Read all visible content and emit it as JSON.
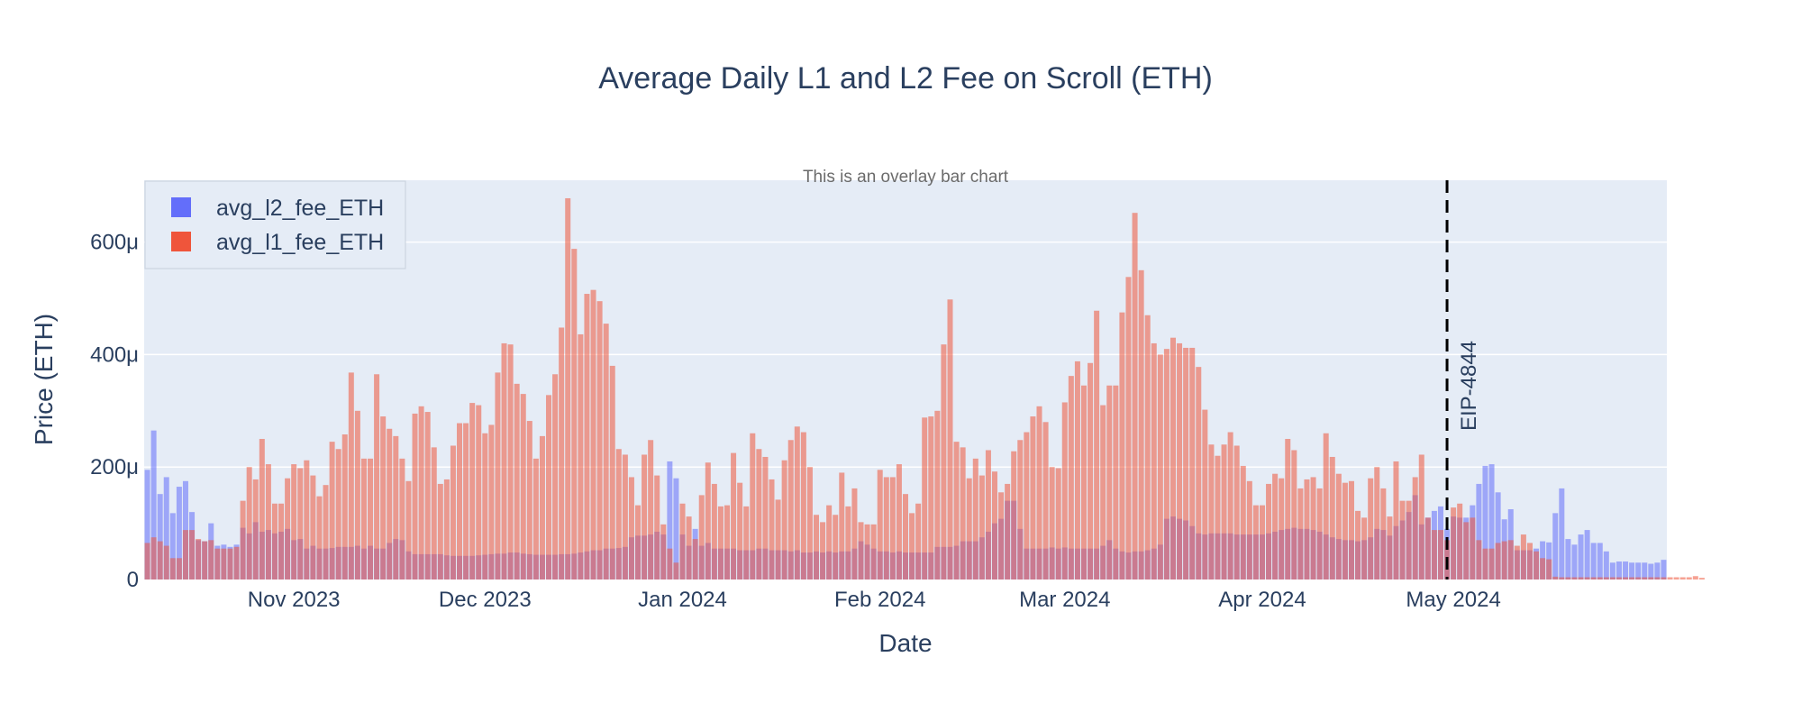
{
  "chart_data": {
    "type": "bar",
    "barmode": "overlay",
    "title": "Average Daily L1 and L2 Fee on Scroll (ETH)",
    "annotation_text": "This is an overlay bar chart",
    "xlabel": "Date",
    "ylabel": "Price (ETH)",
    "x_start": "2023-10-09",
    "x_ticks": [
      {
        "date": "2023-11-01",
        "label": "Nov 2023"
      },
      {
        "date": "2023-12-01",
        "label": "Dec 2023"
      },
      {
        "date": "2024-01-01",
        "label": "Jan 2024"
      },
      {
        "date": "2024-02-01",
        "label": "Feb 2024"
      },
      {
        "date": "2024-03-01",
        "label": "Mar 2024"
      },
      {
        "date": "2024-04-01",
        "label": "Apr 2024"
      },
      {
        "date": "2024-05-01",
        "label": "May 2024"
      }
    ],
    "y_ticks": [
      {
        "value": 0,
        "label": "0"
      },
      {
        "value": 200,
        "label": "200μ"
      },
      {
        "value": 400,
        "label": "400μ"
      },
      {
        "value": 600,
        "label": "600μ"
      }
    ],
    "ylim": [
      0,
      710
    ],
    "y_unit": "μETH",
    "grid": true,
    "legend_position": "top-left",
    "vline": {
      "date": "2024-04-30",
      "label": "EIP-4844",
      "style": "dashed",
      "color": "#000000"
    },
    "series": [
      {
        "name": "avg_l2_fee_ETH",
        "color": "#636efa",
        "values": [
          195,
          265,
          152,
          182,
          118,
          165,
          175,
          120,
          70,
          68,
          100,
          60,
          62,
          58,
          62,
          92,
          82,
          102,
          85,
          88,
          82,
          85,
          90,
          70,
          72,
          55,
          60,
          55,
          55,
          56,
          58,
          58,
          58,
          60,
          55,
          60,
          55,
          55,
          65,
          72,
          70,
          50,
          45,
          45,
          45,
          45,
          45,
          43,
          42,
          42,
          42,
          42,
          43,
          44,
          45,
          46,
          46,
          48,
          48,
          46,
          45,
          44,
          44,
          44,
          44,
          45,
          45,
          46,
          48,
          50,
          52,
          52,
          55,
          55,
          56,
          58,
          75,
          78,
          78,
          80,
          85,
          80,
          210,
          180,
          80,
          60,
          90,
          60,
          65,
          55,
          55,
          55,
          55,
          52,
          52,
          52,
          55,
          55,
          52,
          52,
          52,
          50,
          52,
          48,
          48,
          50,
          48,
          50,
          48,
          50,
          50,
          55,
          68,
          62,
          55,
          50,
          50,
          48,
          50,
          48,
          48,
          48,
          48,
          48,
          58,
          58,
          58,
          60,
          68,
          68,
          68,
          75,
          85,
          100,
          108,
          140,
          140,
          90,
          55,
          55,
          55,
          55,
          57,
          55,
          57,
          55,
          55,
          55,
          55,
          55,
          60,
          70,
          55,
          50,
          48,
          50,
          50,
          52,
          55,
          62,
          108,
          112,
          108,
          105,
          95,
          82,
          80,
          82,
          82,
          82,
          82,
          80,
          80,
          80,
          80,
          80,
          82,
          85,
          88,
          90,
          92,
          90,
          90,
          88,
          85,
          80,
          75,
          72,
          70,
          70,
          68,
          70,
          75,
          90,
          88,
          78,
          95,
          105,
          120,
          150,
          98,
          110,
          122,
          130,
          90,
          112,
          110,
          110,
          132,
          170,
          202,
          205,
          155,
          107,
          125,
          52,
          52,
          52,
          55,
          68,
          66,
          118,
          162,
          72,
          62,
          80,
          88,
          65,
          65,
          50,
          30,
          32,
          32,
          30,
          30,
          30,
          28,
          30,
          35
        ],
        "opacity": 0.55
      },
      {
        "name": "avg_l1_fee_ETH",
        "color": "#ef553b",
        "values": [
          65,
          75,
          68,
          60,
          38,
          38,
          88,
          88,
          72,
          68,
          70,
          55,
          55,
          55,
          58,
          140,
          200,
          178,
          250,
          205,
          135,
          135,
          180,
          205,
          198,
          212,
          185,
          148,
          168,
          245,
          232,
          258,
          368,
          300,
          215,
          215,
          365,
          290,
          268,
          255,
          215,
          175,
          295,
          308,
          298,
          235,
          170,
          178,
          238,
          278,
          278,
          314,
          310,
          260,
          275,
          368,
          420,
          418,
          348,
          330,
          282,
          215,
          255,
          328,
          365,
          448,
          678,
          588,
          436,
          508,
          515,
          495,
          455,
          380,
          232,
          222,
          182,
          132,
          222,
          248,
          185,
          98,
          55,
          30,
          135,
          112,
          72,
          150,
          208,
          170,
          130,
          132,
          225,
          172,
          130,
          260,
          232,
          218,
          178,
          142,
          212,
          248,
          272,
          262,
          200,
          115,
          102,
          132,
          115,
          190,
          130,
          162,
          102,
          98,
          98,
          195,
          182,
          182,
          205,
          152,
          118,
          135,
          288,
          290,
          300,
          418,
          498,
          245,
          235,
          180,
          215,
          185,
          230,
          192,
          155,
          170,
          228,
          248,
          262,
          290,
          308,
          280,
          200,
          198,
          315,
          362,
          388,
          345,
          385,
          478,
          310,
          345,
          345,
          475,
          538,
          652,
          550,
          470,
          420,
          400,
          410,
          430,
          420,
          412,
          412,
          378,
          302,
          240,
          220,
          240,
          262,
          238,
          202,
          175,
          132,
          132,
          170,
          188,
          180,
          250,
          230,
          162,
          178,
          182,
          162,
          260,
          218,
          188,
          172,
          175,
          122,
          110,
          180,
          200,
          162,
          112,
          210,
          140,
          140,
          182,
          222,
          110,
          88,
          88,
          70,
          128,
          135,
          102,
          110,
          70,
          55,
          55,
          65,
          68,
          70,
          60,
          80,
          65,
          50,
          38,
          36,
          5,
          4,
          4,
          4,
          4,
          4,
          4,
          4,
          4,
          4,
          4,
          4,
          4,
          4,
          4,
          4,
          4,
          4,
          4,
          4,
          4,
          4,
          6,
          3
        ],
        "opacity": 0.55
      }
    ]
  }
}
